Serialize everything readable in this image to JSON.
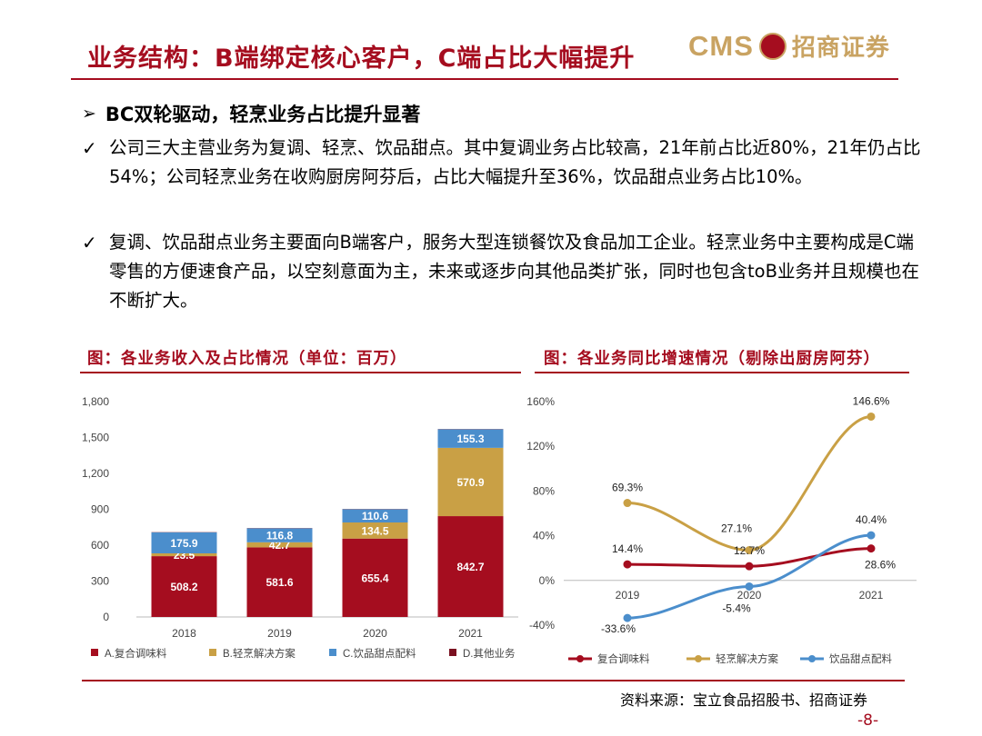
{
  "title": "业务结构：B端绑定核心客户，C端占比大幅提升",
  "logo": {
    "cms": "CMS",
    "cn": "招商证券"
  },
  "heading": "BC双轮驱动，轻烹业务占比提升显著",
  "paragraphs": [
    "公司三大主营业务为复调、轻烹、饮品甜点。其中复调业务占比较高，21年前占比近80%，21年仍占比54%；公司轻烹业务在收购厨房阿芬后，占比大幅提升至36%，饮品甜点业务占比10%。",
    "复调、饮品甜点业务主要面向B端客户，服务大型连锁餐饮及食品加工企业。轻烹业务中主要构成是C端零售的方便速食产品，以空刻意面为主，未来或逐步向其他品类扩张，同时也包含toB业务并且规模也在不断扩大。"
  ],
  "captions": {
    "left": "图：各业务收入及占比情况（单位：百万）",
    "right": "图：各业务同比增速情况（剔除出厨房阿芬）"
  },
  "source": "资料来源：宝立食品招股书、招商证券",
  "page_number": "-8-",
  "colors": {
    "red": "#a50d1f",
    "gold": "#c9a045",
    "blue": "#4b8ecc",
    "darkred": "#7a1020"
  },
  "chart_data": [
    {
      "type": "bar",
      "stacked": true,
      "categories": [
        "2018",
        "2019",
        "2020",
        "2021"
      ],
      "series": [
        {
          "name": "A.复合调味料",
          "values": [
            508.2,
            581.6,
            655.4,
            842.7
          ],
          "labels": [
            "508.2",
            "581.6",
            "655.4",
            "842.7"
          ]
        },
        {
          "name": "B.轻烹解决方案",
          "values": [
            23.5,
            42.7,
            134.5,
            570.9
          ],
          "labels": [
            "23.5",
            "42.7",
            "134.5",
            "570.9"
          ]
        },
        {
          "name": "C.饮品甜点配料",
          "values": [
            175.9,
            116.8,
            110.6,
            155.3
          ],
          "labels": [
            "175.9",
            "116.8",
            "110.6",
            "155.3"
          ]
        },
        {
          "name": "D.其他业务",
          "values": [
            2,
            2,
            2,
            2
          ],
          "labels": [
            "",
            "",
            "",
            ""
          ]
        }
      ],
      "ylim": [
        0,
        1800
      ],
      "yticks": [
        "0",
        "300",
        "600",
        "900",
        "1,200",
        "1,500",
        "1,800"
      ],
      "legend_position": "bottom"
    },
    {
      "type": "line",
      "categories": [
        "2019",
        "2020",
        "2021"
      ],
      "series": [
        {
          "name": "复合调味料",
          "values": [
            14.4,
            12.7,
            28.6
          ],
          "labels": [
            "14.4%",
            "12.7%",
            "28.6%"
          ]
        },
        {
          "name": "轻烹解决方案",
          "values": [
            69.3,
            27.1,
            146.6
          ],
          "labels": [
            "69.3%",
            "27.1%",
            "146.6%"
          ]
        },
        {
          "name": "饮品甜点配料",
          "values": [
            -33.6,
            -5.4,
            40.4
          ],
          "labels": [
            "-33.6%",
            "-5.4%",
            "40.4%"
          ]
        }
      ],
      "ylim": [
        -40,
        160
      ],
      "yticks": [
        "-40%",
        "0%",
        "40%",
        "80%",
        "120%",
        "160%"
      ],
      "legend_position": "bottom"
    }
  ]
}
